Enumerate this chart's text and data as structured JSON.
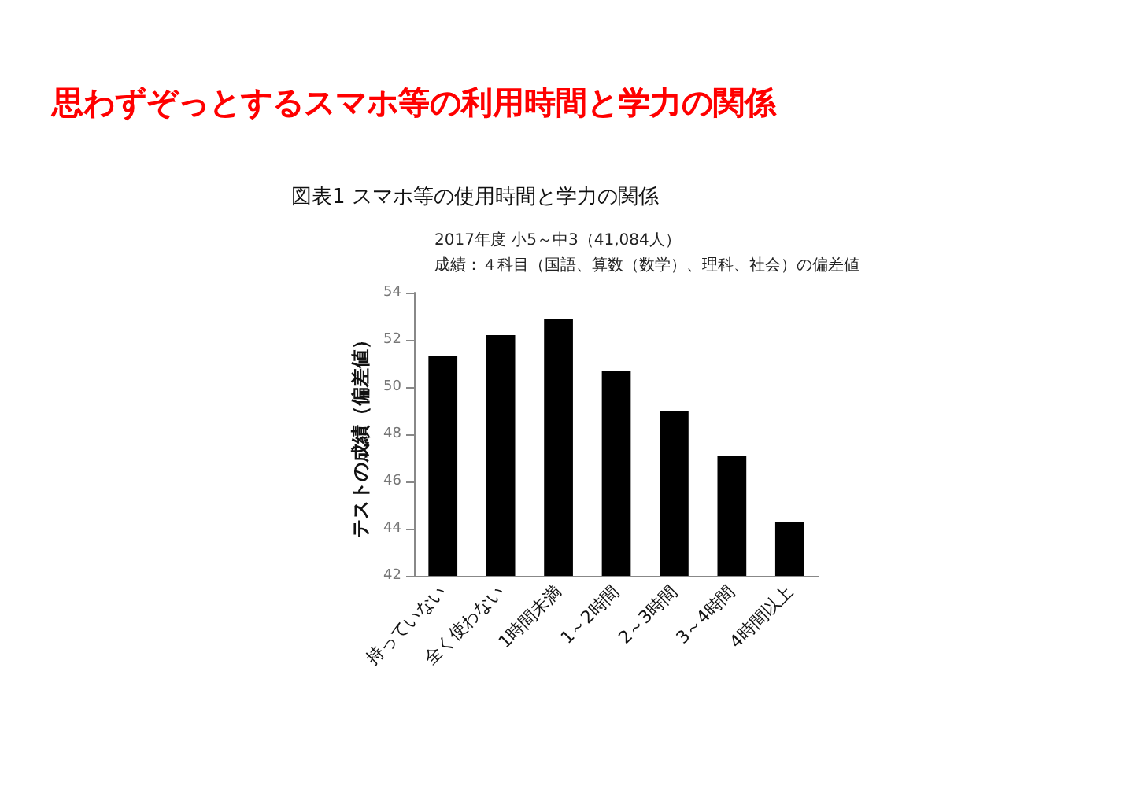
{
  "chart_data": {
    "type": "bar",
    "title": "思わずぞっとするスマホ等の利用時間と学力の関係",
    "subtitle": "図表1 スマホ等の使用時間と学力の関係",
    "annotations": [
      "2017年度 小5～中3（41,084人）",
      "成績：４科目（国語、算数（数学）、理科、社会）の偏差値"
    ],
    "ylabel": "テストの成績（偏差値）",
    "categories": [
      "持っていない",
      "全く使わない",
      "1時間未満",
      "1～2時間",
      "2～3時間",
      "3～4時間",
      "4時間以上"
    ],
    "values": [
      51.3,
      52.2,
      52.9,
      50.7,
      49.0,
      47.1,
      44.3
    ],
    "color": "#000000",
    "ylim": [
      42,
      54
    ],
    "yticks": [
      42,
      44,
      46,
      48,
      50,
      52,
      54
    ],
    "grid": false
  }
}
